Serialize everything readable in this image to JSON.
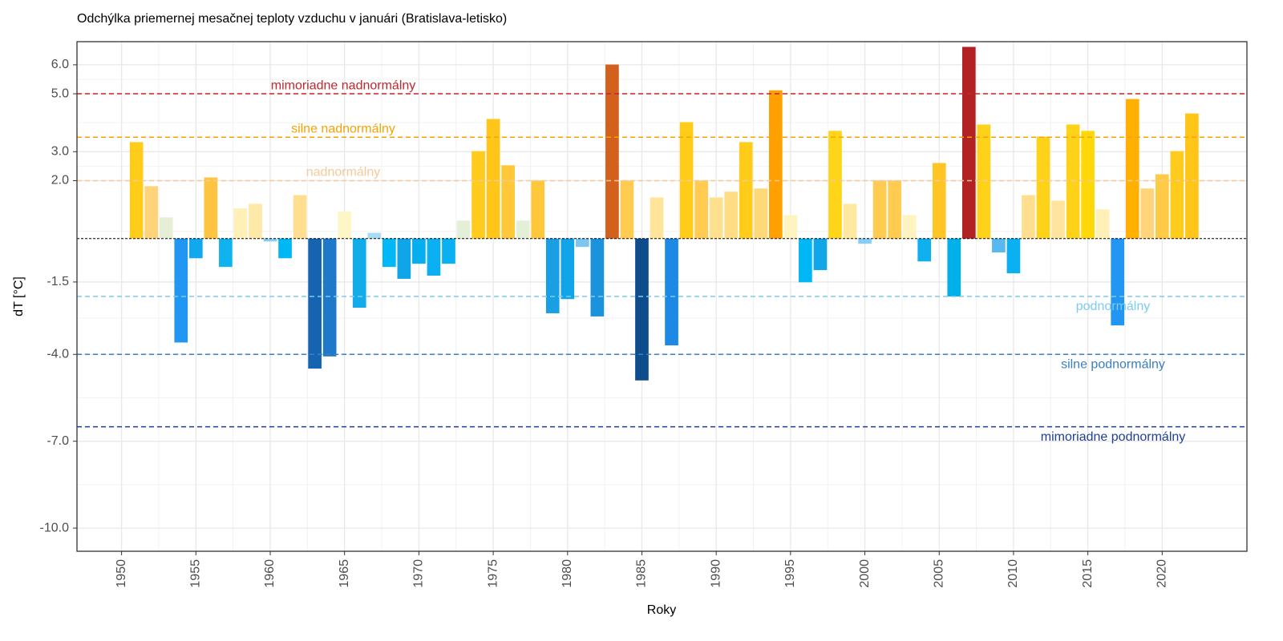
{
  "chart_data": {
    "type": "bar",
    "title": "Odchýlka priemernej mesačnej teploty vzduchu v januári (Bratislava-letisko)",
    "x_label": "Roky",
    "y_label": "dT [°C]",
    "x": [
      1951,
      1952,
      1953,
      1954,
      1955,
      1956,
      1957,
      1958,
      1959,
      1960,
      1961,
      1962,
      1963,
      1964,
      1965,
      1966,
      1967,
      1968,
      1969,
      1970,
      1971,
      1972,
      1973,
      1974,
      1975,
      1976,
      1977,
      1978,
      1979,
      1980,
      1981,
      1982,
      1983,
      1984,
      1985,
      1986,
      1987,
      1988,
      1989,
      1990,
      1991,
      1992,
      1993,
      1994,
      1995,
      1996,
      1997,
      1998,
      1999,
      2000,
      2001,
      2002,
      2003,
      2004,
      2005,
      2006,
      2007,
      2008,
      2009,
      2010,
      2011,
      2012,
      2013,
      2014,
      2015,
      2016,
      2017,
      2018,
      2019,
      2020,
      2021,
      2022
    ],
    "values": [
      3.33,
      1.81,
      0.73,
      -3.59,
      -0.68,
      2.11,
      -0.98,
      1.04,
      1.2,
      -0.1,
      -0.68,
      1.5,
      -4.49,
      -4.07,
      0.93,
      -2.39,
      0.2,
      -0.98,
      -1.39,
      -0.87,
      -1.28,
      -0.87,
      0.62,
      3.02,
      4.13,
      2.53,
      0.62,
      2.0,
      -2.58,
      -2.09,
      -0.29,
      -2.69,
      6.01,
      2.0,
      -4.9,
      1.42,
      -3.69,
      4.02,
      2.0,
      1.42,
      1.62,
      3.33,
      1.73,
      5.12,
      0.81,
      -1.51,
      -1.09,
      3.72,
      1.2,
      -0.18,
      2.0,
      2.0,
      0.81,
      -0.79,
      2.61,
      -2.0,
      6.62,
      3.94,
      -0.48,
      -1.2,
      1.5,
      3.52,
      1.31,
      3.94,
      3.72,
      1.01,
      -3.0,
      4.82,
      1.73,
      2.22,
      3.02,
      4.32
    ],
    "colors": [
      "#ffcc1a",
      "#ffd37a",
      "#e6efd6",
      "#2196f3",
      "#12a8ee",
      "#ffc43f",
      "#0fb3f0",
      "#fff0b8",
      "#ffe9a8",
      "#87cef5",
      "#00b7f5",
      "#ffdf8f",
      "#1664b0",
      "#1f78c8",
      "#fff6c8",
      "#13abe8",
      "#a8dcf5",
      "#00b8f5",
      "#10a4e8",
      "#06aef0",
      "#0ab0f2",
      "#0ab0f2",
      "#e4efd8",
      "#ffcb1d",
      "#ffc519",
      "#ffc83a",
      "#e4efd8",
      "#ffc83a",
      "#1a9fe4",
      "#12a4e8",
      "#7dc6ef",
      "#1b93dc",
      "#d4601e",
      "#ffcb50",
      "#0f4c8c",
      "#ffe49a",
      "#1e88e5",
      "#ffcc1a",
      "#ffcb50",
      "#ffe08f",
      "#ffdd85",
      "#ffcc1a",
      "#ffd878",
      "#ffa000",
      "#fff4c0",
      "#00b7f5",
      "#10a6e8",
      "#ffd51a",
      "#ffe9a0",
      "#87cef5",
      "#ffcb50",
      "#ffcb50",
      "#fff4c0",
      "#10b0ee",
      "#ffc525",
      "#00b0ea",
      "#b22222",
      "#ffd21a",
      "#58b8f0",
      "#0ab0f0",
      "#ffdf8f",
      "#ffd21a",
      "#ffe4a0",
      "#ffd21a",
      "#ffd80a",
      "#fff0b8",
      "#2196f3",
      "#ffb000",
      "#ffd47a",
      "#ffca45",
      "#ffcb1d",
      "#ffc519"
    ],
    "reference_lines": [
      {
        "value": 5.0,
        "label": "mimoriadne nadnormálny",
        "color": "#c1272d"
      },
      {
        "value": 3.5,
        "label": "silne nadnormálny",
        "color": "#f5a300"
      },
      {
        "value": 2.0,
        "label": "nadnormálny",
        "color": "#f6c99a"
      },
      {
        "value": -2.0,
        "label": "podnormálny",
        "color": "#7ccbf0"
      },
      {
        "value": -4.0,
        "label": "silne podnormálny",
        "color": "#3a7fc0"
      },
      {
        "value": -6.5,
        "label": "mimoriadne podnormálny",
        "color": "#1f3f95"
      }
    ],
    "xlim": [
      1947,
      2025.7
    ],
    "xticks": [
      1950,
      1955,
      1960,
      1965,
      1970,
      1975,
      1980,
      1985,
      1990,
      1995,
      2000,
      2005,
      2010,
      2015,
      2020
    ],
    "ylim": [
      -10.8,
      6.8
    ],
    "yticks": [
      {
        "value": 6,
        "label": "6.0"
      },
      {
        "value": 5,
        "label": "5.0"
      },
      {
        "value": 3,
        "label": "3.0"
      },
      {
        "value": 2,
        "label": "2.0"
      },
      -1.5,
      {
        "value": -4,
        "label": "-4.0"
      },
      {
        "value": -7,
        "label": "-7.0"
      },
      {
        "value": -10,
        "label": "-10.0"
      }
    ],
    "grid": true
  }
}
